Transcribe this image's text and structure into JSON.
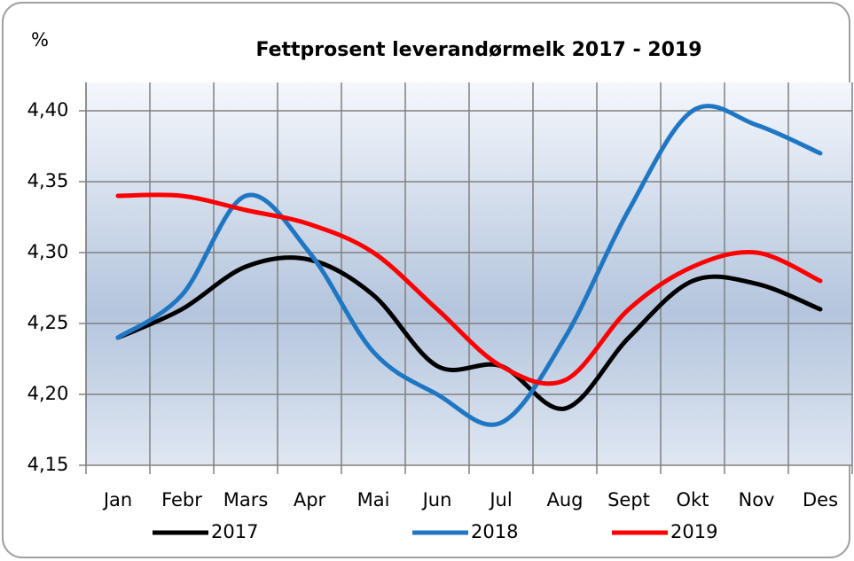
{
  "chart_data": {
    "type": "line",
    "title": "Fettprosent leverandørmelk 2017 - 2019",
    "y_label": "%",
    "categories": [
      "Jan",
      "Febr",
      "Mars",
      "Apr",
      "Mai",
      "Jun",
      "Jul",
      "Aug",
      "Sept",
      "Okt",
      "Nov",
      "Des"
    ],
    "series": [
      {
        "name": "2017",
        "color": "#000000",
        "values": [
          4.24,
          4.26,
          4.29,
          4.295,
          4.27,
          4.22,
          4.22,
          4.19,
          4.24,
          4.28,
          4.278,
          4.26
        ]
      },
      {
        "name": "2018",
        "color": "#1f77c4",
        "values": [
          4.24,
          4.27,
          4.34,
          4.3,
          4.23,
          4.2,
          4.18,
          4.24,
          4.33,
          4.4,
          4.39,
          4.37
        ]
      },
      {
        "name": "2019",
        "color": "#ff0000",
        "values": [
          4.34,
          4.34,
          4.33,
          4.32,
          4.3,
          4.26,
          4.22,
          4.21,
          4.26,
          4.29,
          4.3,
          4.28
        ]
      }
    ],
    "ylim": [
      4.15,
      4.42
    ],
    "yticks": [
      {
        "value": 4.15,
        "label": "4,15"
      },
      {
        "value": 4.2,
        "label": "4,20"
      },
      {
        "value": 4.25,
        "label": "4,25"
      },
      {
        "value": 4.3,
        "label": "4,30"
      },
      {
        "value": 4.35,
        "label": "4,35"
      },
      {
        "value": 4.4,
        "label": "4,40"
      }
    ],
    "grid": true,
    "legend": "bottom"
  }
}
